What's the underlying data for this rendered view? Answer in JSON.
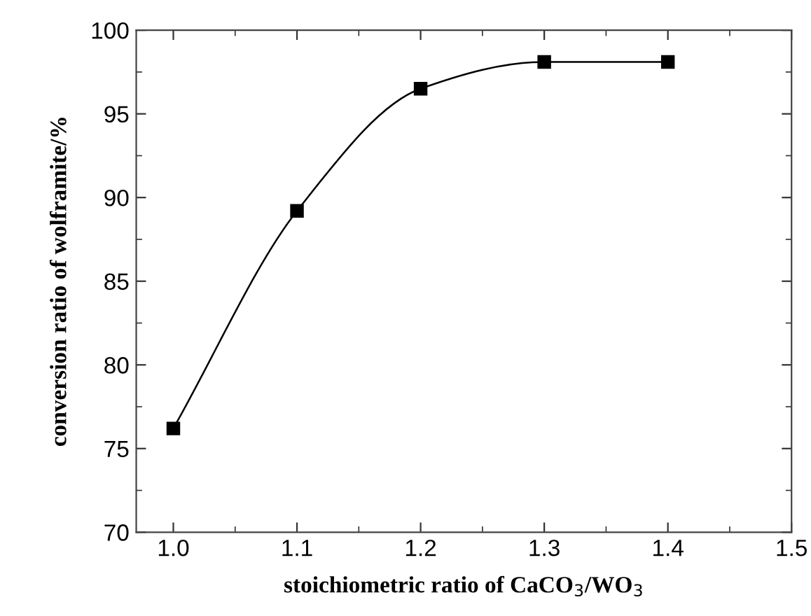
{
  "chart_data": {
    "type": "line",
    "xlabel": "stoichiometric ratio of CaCO$_{3}$/WO$_{3}$",
    "ylabel": "conversion ratio of wolframite/%",
    "x": [
      1.0,
      1.1,
      1.2,
      1.3,
      1.4
    ],
    "series": [
      {
        "color": "#000000",
        "values": [
          76.2,
          89.2,
          96.5,
          98.1,
          98.1
        ]
      }
    ],
    "marker": "square",
    "line_style": "solid",
    "grid": false,
    "legend": false,
    "xlim": [
      0.97,
      1.5
    ],
    "xticks": [
      {
        "value": 1.0,
        "label": "1.0"
      },
      1.1,
      1.2,
      1.3,
      1.4,
      1.5
    ],
    "ylim": [
      70,
      100
    ],
    "yticks": [
      70,
      75,
      80,
      85,
      90,
      95,
      100
    ]
  }
}
